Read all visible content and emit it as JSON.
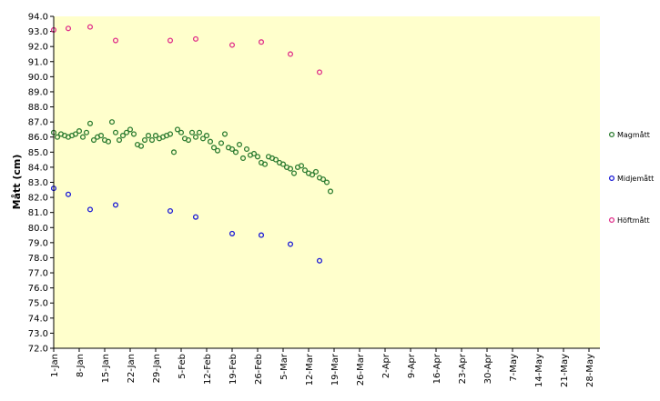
{
  "chart_data": {
    "type": "scatter",
    "title": "",
    "ylabel": "Mått (cm)",
    "xlabel": "",
    "ylim": [
      72.0,
      94.0
    ],
    "ytick_step": 1.0,
    "x_categories": [
      "1-Jan",
      "8-Jan",
      "15-Jan",
      "22-Jan",
      "29-Jan",
      "5-Feb",
      "12-Feb",
      "19-Feb",
      "26-Feb",
      "5-Mar",
      "12-Mar",
      "19-Mar",
      "26-Mar",
      "2-Apr",
      "9-Apr",
      "16-Apr",
      "23-Apr",
      "30-Apr",
      "7-May",
      "14-May",
      "21-May",
      "28-May"
    ],
    "xlim_days": [
      0,
      150
    ],
    "grid": "none",
    "plot_background": "#ffffcc",
    "legend_placement": "right",
    "series": [
      {
        "name": "Magmått",
        "marker_color": "#2e7d32",
        "x": [
          0,
          1,
          2,
          3,
          4,
          5,
          6,
          7,
          8,
          9,
          10,
          11,
          12,
          13,
          14,
          15,
          16,
          17,
          18,
          19,
          20,
          21,
          22,
          23,
          24,
          25,
          26,
          27,
          28,
          29,
          30,
          31,
          32,
          33,
          34,
          35,
          36,
          37,
          38,
          39,
          40,
          41,
          42,
          43,
          44,
          45,
          46,
          47,
          48,
          49,
          50,
          51,
          52,
          53,
          54,
          55,
          56,
          57,
          58,
          59,
          60,
          61,
          62,
          63,
          64,
          65,
          66,
          67,
          68,
          69,
          70,
          71,
          72,
          73,
          74,
          75
        ],
        "y": [
          86.3,
          86.0,
          86.2,
          86.1,
          86.0,
          86.1,
          86.2,
          86.4,
          86.0,
          86.3,
          86.9,
          85.8,
          86.0,
          86.1,
          85.8,
          85.7,
          87.0,
          86.3,
          85.8,
          86.1,
          86.3,
          86.5,
          86.2,
          85.5,
          85.4,
          85.8,
          86.1,
          85.8,
          86.1,
          85.9,
          86.0,
          86.1,
          86.2,
          85.0,
          86.5,
          86.3,
          85.9,
          85.8,
          86.3,
          86.0,
          86.3,
          85.9,
          86.1,
          85.7,
          85.3,
          85.1,
          85.6,
          86.2,
          85.3,
          85.2,
          85.0,
          85.5,
          84.6,
          85.2,
          84.8,
          84.9,
          84.7,
          84.3,
          84.2,
          84.7,
          84.6,
          84.5,
          84.3,
          84.2,
          84.0,
          83.9,
          83.6,
          84.0,
          84.1,
          83.8,
          83.6,
          83.5,
          83.7,
          83.3,
          83.2,
          83.0
        ],
        "x_extra": [
          76
        ],
        "y_extra": [
          82.4
        ]
      },
      {
        "name": "Midjemått",
        "marker_color": "#1a1ad6",
        "x": [
          0,
          4,
          10,
          17,
          32,
          39,
          49,
          57,
          65,
          73
        ],
        "y": [
          82.6,
          82.2,
          81.2,
          81.5,
          81.1,
          80.7,
          79.6,
          79.5,
          78.9,
          77.8
        ]
      },
      {
        "name": "Höftmått",
        "marker_color": "#e0308a",
        "x": [
          0,
          4,
          10,
          17,
          32,
          39,
          49,
          57,
          65,
          73
        ],
        "y": [
          93.1,
          93.2,
          93.3,
          92.4,
          92.4,
          92.5,
          92.1,
          92.3,
          91.5,
          90.3
        ]
      }
    ]
  }
}
